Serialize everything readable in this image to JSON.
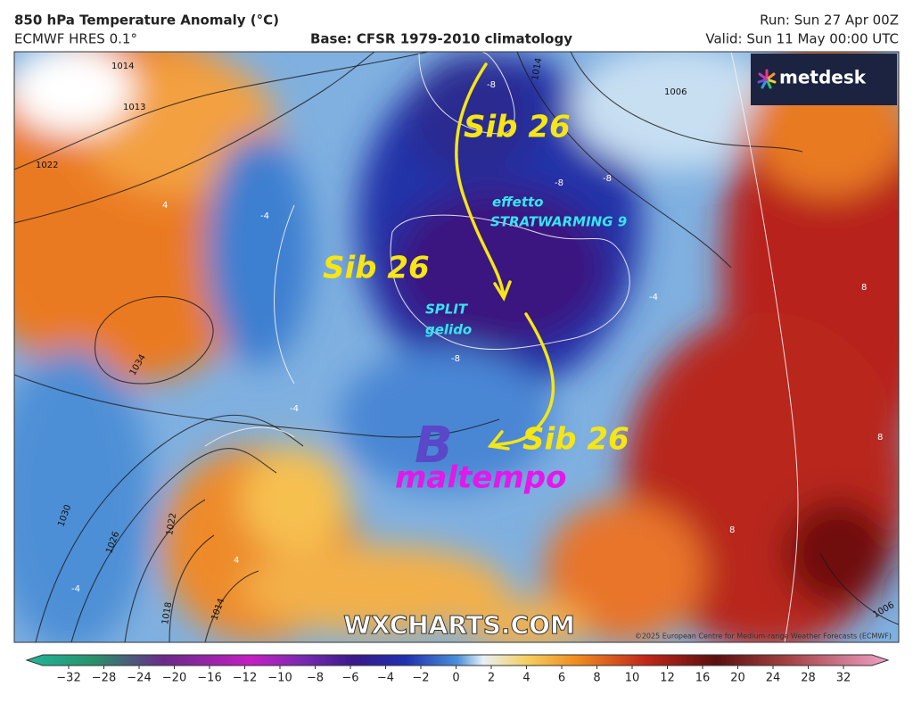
{
  "header": {
    "title": "850 hPa Temperature Anomaly (°C)",
    "model": "ECMWF HRES 0.1°",
    "base": "Base: CFSR 1979-2010 climatology",
    "run": "Run: Sun 27 Apr 00Z",
    "valid": "Valid: Sun 11 May 00:00 UTC"
  },
  "logo": "metdesk",
  "annotations": {
    "sib_north": "Sib 26",
    "sib_west": "Sib 26",
    "sib_south": "Sib 26",
    "effetto": "effetto",
    "stratwarming": "STRATWARMING 9",
    "split": "SPLIT",
    "gelido": "gelido",
    "low": "B",
    "maltempo": "maltempo"
  },
  "isobar_labels": [
    1014,
    1013,
    1022,
    1034,
    1030,
    1026,
    1022,
    1018,
    1014,
    1014,
    1006,
    1006
  ],
  "anomaly_labels": [
    -8,
    -8,
    -8,
    -8,
    -4,
    -4,
    -4,
    4,
    4,
    8,
    8,
    8,
    -4
  ],
  "watermark": "WXCHARTS.COM",
  "copyright": "©2025 European Centre for Medium-range Weather Forecasts (ECMWF)",
  "colorbar": {
    "ticks": [
      {
        "value": -32,
        "label": "−32"
      },
      {
        "value": -28,
        "label": "−28"
      },
      {
        "value": -24,
        "label": "−24"
      },
      {
        "value": -20,
        "label": "−20"
      },
      {
        "value": -16,
        "label": "−16"
      },
      {
        "value": -12,
        "label": "−12"
      },
      {
        "value": -10,
        "label": "−10"
      },
      {
        "value": -8,
        "label": "−8"
      },
      {
        "value": -6,
        "label": "−6"
      },
      {
        "value": -4,
        "label": "−4"
      },
      {
        "value": -2,
        "label": "−2"
      },
      0,
      2,
      4,
      6,
      8,
      10,
      12,
      16,
      20,
      24,
      28,
      32
    ]
  }
}
